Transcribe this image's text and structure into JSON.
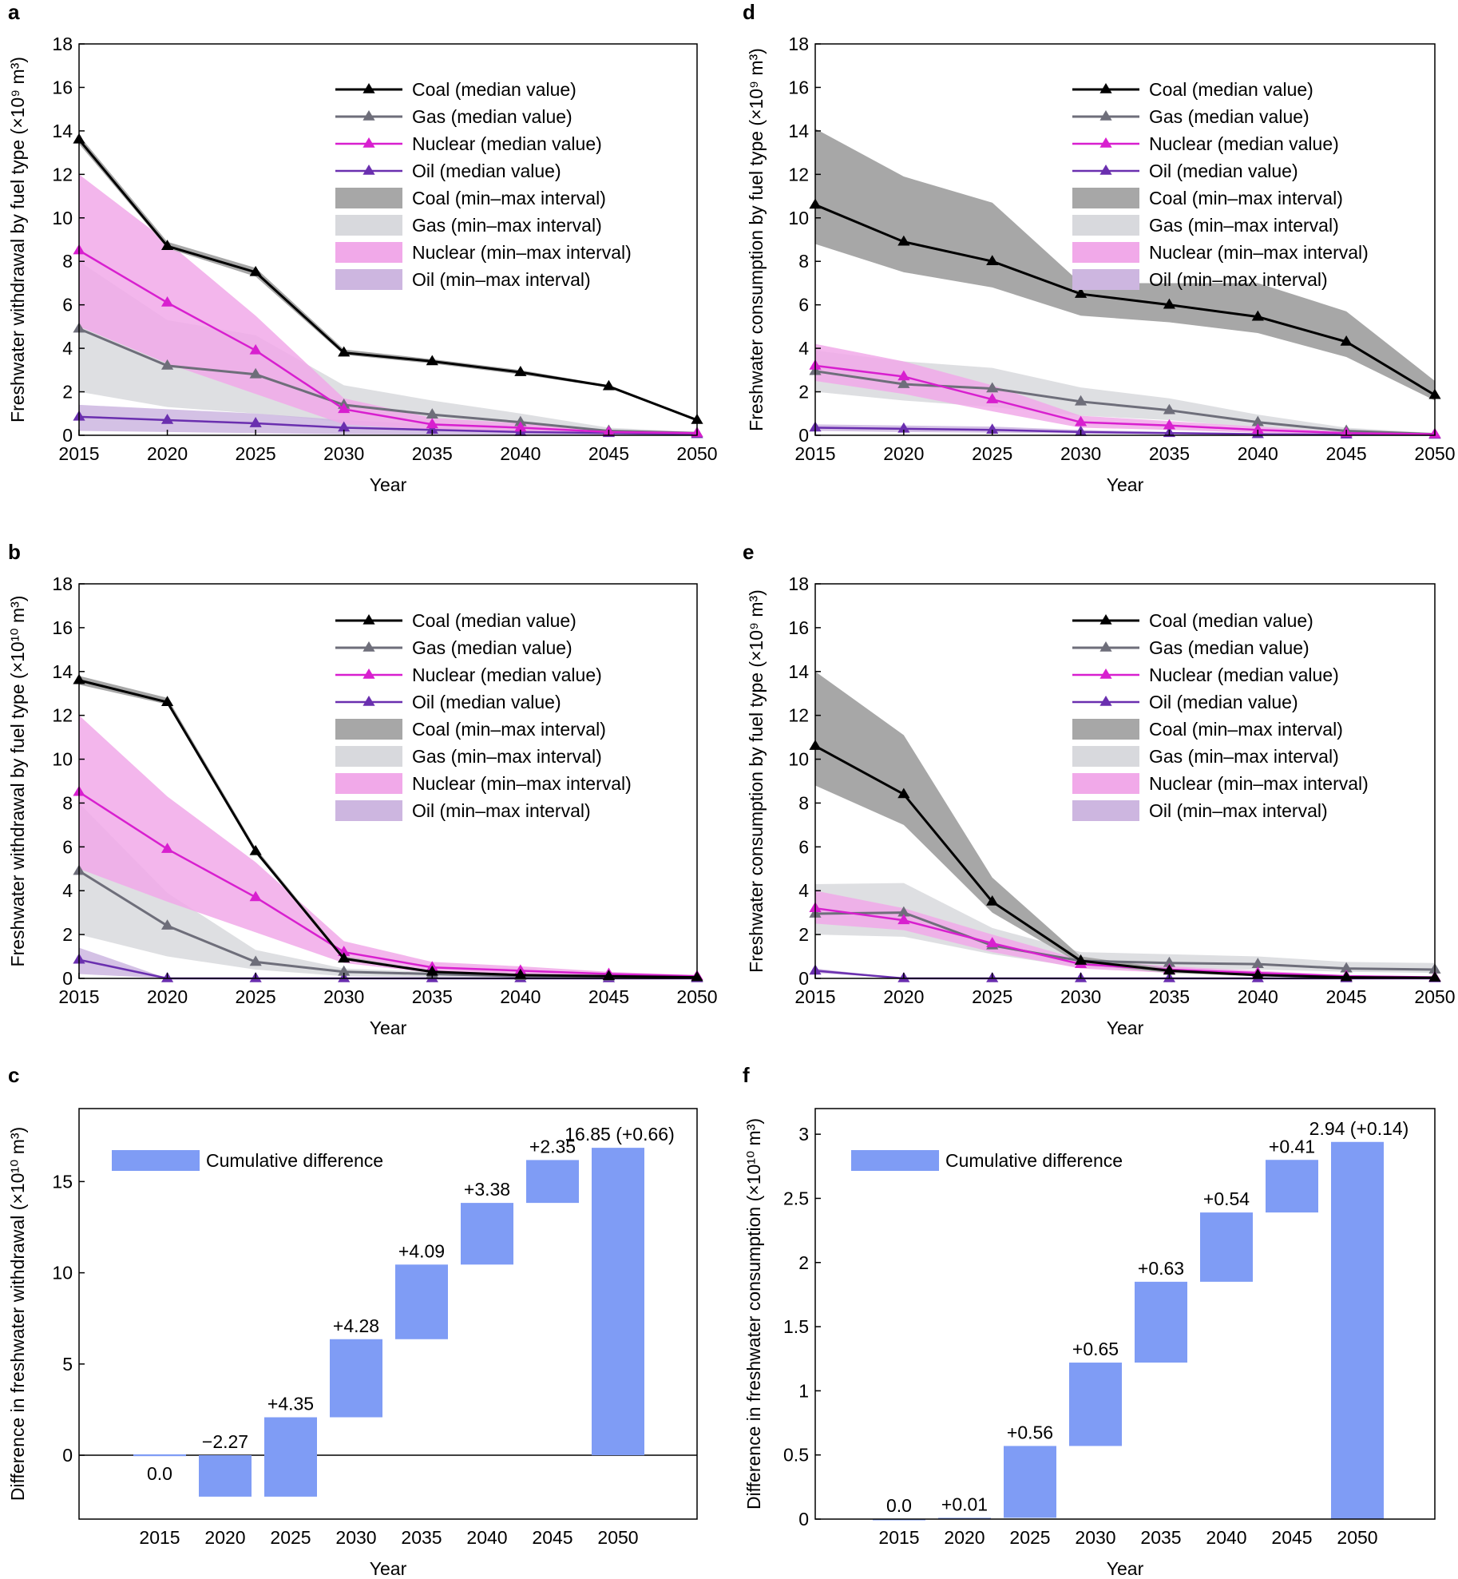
{
  "colors": {
    "coal": "#000000",
    "gas": "#6e6e7a",
    "nuclear": "#d81fcf",
    "oil": "#6a2faf",
    "coal_band": "#a7a7a7",
    "gas_band": "#d8d9dd",
    "nuclear_band": "#f1a9e9",
    "oil_band": "#cdb6e0",
    "bar": "#7f9cf5"
  },
  "chart_data": [
    {
      "panel": "a",
      "type": "line",
      "xlabel": "Year",
      "ylabel": "Freshwater withdrawal by fuel type (×10⁹ m³)",
      "x": [
        2015,
        2020,
        2025,
        2030,
        2035,
        2040,
        2045,
        2050
      ],
      "x_ticks": [
        "2015",
        "2020",
        "2025",
        "2030",
        "2035",
        "2040",
        "2045",
        "2050"
      ],
      "ylim": [
        0,
        18
      ],
      "y_ticks": [
        "0",
        "2",
        "4",
        "6",
        "8",
        "10",
        "12",
        "14",
        "16",
        "18"
      ],
      "series": [
        {
          "name": "Coal (median value)",
          "key": "coal",
          "values": [
            13.6,
            8.7,
            7.5,
            3.8,
            3.4,
            2.9,
            2.25,
            0.7
          ]
        },
        {
          "name": "Gas (median value)",
          "key": "gas",
          "values": [
            4.9,
            3.2,
            2.8,
            1.4,
            0.95,
            0.6,
            0.2,
            0.1
          ]
        },
        {
          "name": "Nuclear (median value)",
          "key": "nuclear",
          "values": [
            8.5,
            6.1,
            3.9,
            1.2,
            0.5,
            0.35,
            0.15,
            0.1
          ]
        },
        {
          "name": "Oil (median value)",
          "key": "oil",
          "values": [
            0.85,
            0.7,
            0.55,
            0.35,
            0.25,
            0.15,
            0.1,
            0.05
          ]
        }
      ],
      "bands": [
        {
          "name": "Coal (min–max interval)",
          "key": "coal_band",
          "lo": [
            13.4,
            8.6,
            7.3,
            3.7,
            3.3,
            2.8,
            2.2,
            0.65
          ],
          "hi": [
            13.8,
            8.9,
            7.7,
            3.95,
            3.5,
            3.0,
            2.3,
            0.75
          ]
        },
        {
          "name": "Gas (min–max interval)",
          "key": "gas_band",
          "lo": [
            2.0,
            1.3,
            1.0,
            0.6,
            0.4,
            0.25,
            0.1,
            0.05
          ],
          "hi": [
            8.0,
            5.3,
            4.6,
            2.3,
            1.6,
            1.0,
            0.35,
            0.15
          ]
        },
        {
          "name": "Nuclear (min–max interval)",
          "key": "nuclear_band",
          "lo": [
            5.0,
            3.3,
            1.9,
            0.5,
            0.25,
            0.15,
            0.08,
            0.04
          ],
          "hi": [
            12.0,
            8.9,
            5.5,
            1.7,
            0.8,
            0.55,
            0.25,
            0.15
          ]
        },
        {
          "name": "Oil (min–max interval)",
          "key": "oil_band",
          "lo": [
            0.2,
            0.15,
            0.1,
            0.05,
            0.03,
            0.02,
            0.01,
            0.0
          ],
          "hi": [
            1.4,
            1.2,
            1.0,
            0.7,
            0.5,
            0.3,
            0.15,
            0.1
          ]
        }
      ]
    },
    {
      "panel": "d",
      "type": "line",
      "xlabel": "Year",
      "ylabel": "Freshwater consumption by fuel type (×10⁹ m³)",
      "x": [
        2015,
        2020,
        2025,
        2030,
        2035,
        2040,
        2045,
        2050
      ],
      "x_ticks": [
        "2015",
        "2020",
        "2025",
        "2030",
        "2035",
        "2040",
        "2045",
        "2050"
      ],
      "ylim": [
        0,
        18
      ],
      "y_ticks": [
        "0",
        "2",
        "4",
        "6",
        "8",
        "10",
        "12",
        "14",
        "16",
        "18"
      ],
      "series": [
        {
          "name": "Coal (median value)",
          "key": "coal",
          "values": [
            10.6,
            8.9,
            8.0,
            6.5,
            6.0,
            5.45,
            4.3,
            1.85
          ]
        },
        {
          "name": "Gas (median value)",
          "key": "gas",
          "values": [
            2.95,
            2.35,
            2.15,
            1.55,
            1.15,
            0.6,
            0.2,
            0.05
          ]
        },
        {
          "name": "Nuclear (median value)",
          "key": "nuclear",
          "values": [
            3.2,
            2.7,
            1.65,
            0.6,
            0.45,
            0.25,
            0.1,
            0.05
          ]
        },
        {
          "name": "Oil (median value)",
          "key": "oil",
          "values": [
            0.35,
            0.3,
            0.25,
            0.15,
            0.1,
            0.05,
            0.03,
            0.02
          ]
        }
      ],
      "bands": [
        {
          "name": "Coal (min–max interval)",
          "key": "coal_band",
          "lo": [
            8.8,
            7.5,
            6.8,
            5.5,
            5.2,
            4.7,
            3.6,
            1.6
          ],
          "hi": [
            14.1,
            11.9,
            10.7,
            7.0,
            7.0,
            7.0,
            5.7,
            2.5
          ]
        },
        {
          "name": "Gas (min–max interval)",
          "key": "gas_band",
          "lo": [
            2.0,
            1.6,
            1.3,
            0.9,
            0.7,
            0.35,
            0.1,
            0.02
          ],
          "hi": [
            3.9,
            3.4,
            3.1,
            2.2,
            1.7,
            0.95,
            0.35,
            0.1
          ]
        },
        {
          "name": "Nuclear (min–max interval)",
          "key": "nuclear_band",
          "lo": [
            2.5,
            1.9,
            1.1,
            0.35,
            0.25,
            0.12,
            0.05,
            0.02
          ],
          "hi": [
            4.2,
            3.4,
            2.3,
            0.9,
            0.65,
            0.4,
            0.15,
            0.08
          ]
        },
        {
          "name": "Oil (min–max interval)",
          "key": "oil_band",
          "lo": [
            0.2,
            0.15,
            0.12,
            0.08,
            0.05,
            0.02,
            0.01,
            0.0
          ],
          "hi": [
            0.5,
            0.45,
            0.4,
            0.25,
            0.15,
            0.1,
            0.05,
            0.03
          ]
        }
      ]
    },
    {
      "panel": "b",
      "type": "line",
      "xlabel": "Year",
      "ylabel": "Freshwater withdrawal by fuel type (×10¹⁰ m³)",
      "x": [
        2015,
        2020,
        2025,
        2030,
        2035,
        2040,
        2045,
        2050
      ],
      "x_ticks": [
        "2015",
        "2020",
        "2025",
        "2030",
        "2035",
        "2040",
        "2045",
        "2050"
      ],
      "ylim": [
        0,
        18
      ],
      "y_ticks": [
        "0",
        "2",
        "4",
        "6",
        "8",
        "10",
        "12",
        "14",
        "16",
        "18"
      ],
      "series": [
        {
          "name": "Coal (median value)",
          "key": "coal",
          "values": [
            13.6,
            12.6,
            5.8,
            0.9,
            0.3,
            0.15,
            0.1,
            0.05
          ]
        },
        {
          "name": "Gas (median value)",
          "key": "gas",
          "values": [
            4.9,
            2.4,
            0.75,
            0.3,
            0.2,
            0.1,
            0.08,
            0.05
          ]
        },
        {
          "name": "Nuclear (median value)",
          "key": "nuclear",
          "values": [
            8.5,
            5.9,
            3.7,
            1.2,
            0.5,
            0.35,
            0.2,
            0.1
          ]
        },
        {
          "name": "Oil (median value)",
          "key": "oil",
          "values": [
            0.85,
            0.0,
            0.0,
            0.0,
            0.0,
            0.0,
            0.0,
            0.0
          ]
        }
      ],
      "bands": [
        {
          "name": "Coal (min–max interval)",
          "key": "coal_band",
          "lo": [
            13.4,
            12.5,
            5.7,
            0.85,
            0.25,
            0.12,
            0.08,
            0.04
          ],
          "hi": [
            13.8,
            12.8,
            5.95,
            1.0,
            0.35,
            0.2,
            0.12,
            0.06
          ]
        },
        {
          "name": "Gas (min–max interval)",
          "key": "gas_band",
          "lo": [
            2.0,
            1.0,
            0.4,
            0.1,
            0.05,
            0.03,
            0.02,
            0.01
          ],
          "hi": [
            8.0,
            3.9,
            1.3,
            0.45,
            0.3,
            0.2,
            0.12,
            0.08
          ]
        },
        {
          "name": "Nuclear (min–max interval)",
          "key": "nuclear_band",
          "lo": [
            5.0,
            3.5,
            2.1,
            0.7,
            0.25,
            0.2,
            0.1,
            0.05
          ],
          "hi": [
            12.0,
            8.3,
            5.3,
            1.7,
            0.75,
            0.55,
            0.3,
            0.15
          ]
        },
        {
          "name": "Oil (min–max interval)",
          "key": "oil_band",
          "lo": [
            0.2,
            0.0,
            0.0,
            0.0,
            0.0,
            0.0,
            0.0,
            0.0
          ],
          "hi": [
            1.4,
            0.0,
            0.0,
            0.0,
            0.0,
            0.0,
            0.0,
            0.0
          ]
        }
      ]
    },
    {
      "panel": "e",
      "type": "line",
      "xlabel": "Year",
      "ylabel": "Freshwater consumption by fuel type (×10⁹ m³)",
      "x": [
        2015,
        2020,
        2025,
        2030,
        2035,
        2040,
        2045,
        2050
      ],
      "x_ticks": [
        "2015",
        "2020",
        "2025",
        "2030",
        "2035",
        "2040",
        "2045",
        "2050"
      ],
      "ylim": [
        0,
        18
      ],
      "y_ticks": [
        "0",
        "2",
        "4",
        "6",
        "8",
        "10",
        "12",
        "14",
        "16",
        "18"
      ],
      "series": [
        {
          "name": "Coal (median value)",
          "key": "coal",
          "values": [
            10.6,
            8.4,
            3.5,
            0.8,
            0.35,
            0.15,
            0.05,
            0.03
          ]
        },
        {
          "name": "Gas (median value)",
          "key": "gas",
          "values": [
            2.95,
            3.0,
            1.5,
            0.8,
            0.7,
            0.65,
            0.45,
            0.4
          ]
        },
        {
          "name": "Nuclear (median value)",
          "key": "nuclear",
          "values": [
            3.2,
            2.65,
            1.6,
            0.65,
            0.4,
            0.25,
            0.1,
            0.05
          ]
        },
        {
          "name": "Oil (median value)",
          "key": "oil",
          "values": [
            0.35,
            0.0,
            0.0,
            0.0,
            0.0,
            0.0,
            0.0,
            0.0
          ]
        }
      ],
      "bands": [
        {
          "name": "Coal (min–max interval)",
          "key": "coal_band",
          "lo": [
            8.8,
            7.0,
            3.0,
            0.65,
            0.25,
            0.1,
            0.03,
            0.02
          ],
          "hi": [
            14.0,
            11.1,
            4.6,
            1.0,
            0.45,
            0.2,
            0.08,
            0.05
          ]
        },
        {
          "name": "Gas (min–max interval)",
          "key": "gas_band",
          "lo": [
            2.0,
            1.9,
            1.1,
            0.5,
            0.45,
            0.4,
            0.3,
            0.25
          ],
          "hi": [
            4.3,
            4.35,
            2.3,
            1.2,
            1.1,
            1.0,
            0.75,
            0.7
          ]
        },
        {
          "name": "Nuclear (min–max interval)",
          "key": "nuclear_band",
          "lo": [
            2.5,
            2.2,
            1.2,
            0.45,
            0.25,
            0.15,
            0.05,
            0.03
          ],
          "hi": [
            4.0,
            3.2,
            2.0,
            0.85,
            0.55,
            0.35,
            0.15,
            0.08
          ]
        },
        {
          "name": "Oil (min–max interval)",
          "key": "oil_band",
          "lo": [
            0.25,
            0.0,
            0.0,
            0.0,
            0.0,
            0.0,
            0.0,
            0.0
          ],
          "hi": [
            0.45,
            0.0,
            0.0,
            0.0,
            0.0,
            0.0,
            0.0,
            0.0
          ]
        }
      ]
    },
    {
      "panel": "c",
      "type": "bar",
      "xlabel": "Year",
      "ylabel": "Difference in freshwater withdrawal (×10¹⁰ m³)",
      "categories": [
        "2015",
        "2020",
        "2025",
        "2030",
        "2035",
        "2040",
        "2045",
        "2050"
      ],
      "ylim": [
        -3.5,
        19
      ],
      "y_ticks": [
        0,
        5,
        10,
        15
      ],
      "y_tick_labels": [
        "0",
        "5",
        "10",
        "15"
      ],
      "zero_line": true,
      "legend": "Cumulative difference",
      "bars": [
        {
          "category": "2015",
          "lo": -0.05,
          "hi": 0.05,
          "label": "0.0",
          "label_pos": "below"
        },
        {
          "category": "2020",
          "lo": -2.27,
          "hi": 0.0,
          "label": "−2.27",
          "label_pos": "above"
        },
        {
          "category": "2025",
          "lo": -2.27,
          "hi": 2.08,
          "label": "+4.35",
          "label_pos": "above"
        },
        {
          "category": "2030",
          "lo": 2.08,
          "hi": 6.36,
          "label": "+4.28",
          "label_pos": "above"
        },
        {
          "category": "2035",
          "lo": 6.36,
          "hi": 10.45,
          "label": "+4.09",
          "label_pos": "above"
        },
        {
          "category": "2040",
          "lo": 10.45,
          "hi": 13.83,
          "label": "+3.38",
          "label_pos": "above"
        },
        {
          "category": "2045",
          "lo": 13.83,
          "hi": 16.18,
          "label": "+2.35",
          "label_pos": "above"
        },
        {
          "category": "2050",
          "lo": 0.0,
          "hi": 16.85,
          "label": "16.85 (+0.66)",
          "label_pos": "above"
        }
      ]
    },
    {
      "panel": "f",
      "type": "bar",
      "xlabel": "Year",
      "ylabel": "Difference in freshwater consumption (×10¹⁰ m³)",
      "categories": [
        "2015",
        "2020",
        "2025",
        "2030",
        "2035",
        "2040",
        "2045",
        "2050"
      ],
      "ylim": [
        0,
        3.2
      ],
      "y_ticks": [
        0,
        0.5,
        1,
        1.5,
        2,
        2.5,
        3
      ],
      "y_tick_labels": [
        "0",
        "0.5",
        "1",
        "1.5",
        "2",
        "2.5",
        "3"
      ],
      "zero_line": false,
      "legend": "Cumulative difference",
      "bars": [
        {
          "category": "2015",
          "lo": 0.0,
          "hi": 0.0,
          "label": "0.0",
          "label_pos": "above"
        },
        {
          "category": "2020",
          "lo": 0.0,
          "hi": 0.01,
          "label": "+0.01",
          "label_pos": "above"
        },
        {
          "category": "2025",
          "lo": 0.01,
          "hi": 0.57,
          "label": "+0.56",
          "label_pos": "above"
        },
        {
          "category": "2030",
          "lo": 0.57,
          "hi": 1.22,
          "label": "+0.65",
          "label_pos": "above"
        },
        {
          "category": "2035",
          "lo": 1.22,
          "hi": 1.85,
          "label": "+0.63",
          "label_pos": "above"
        },
        {
          "category": "2040",
          "lo": 1.85,
          "hi": 2.39,
          "label": "+0.54",
          "label_pos": "above"
        },
        {
          "category": "2045",
          "lo": 2.39,
          "hi": 2.8,
          "label": "+0.41",
          "label_pos": "above"
        },
        {
          "category": "2050",
          "lo": 0.0,
          "hi": 2.94,
          "label": "2.94 (+0.14)",
          "label_pos": "above"
        }
      ]
    }
  ]
}
